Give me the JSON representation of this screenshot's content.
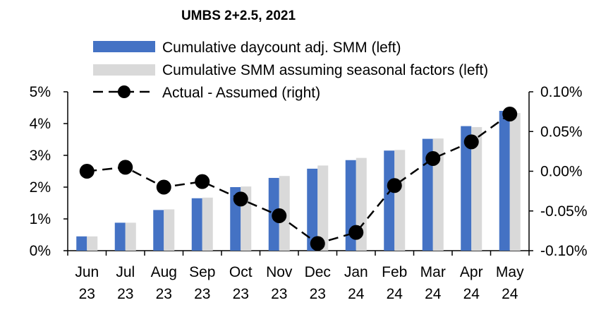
{
  "chart_data": {
    "type": "bar",
    "title": "UMBS 2+2.5, 2021",
    "categories": [
      "Jun 23",
      "Jul 23",
      "Aug 23",
      "Sep 23",
      "Oct 23",
      "Nov 23",
      "Dec 23",
      "Jan 24",
      "Feb 24",
      "Mar 24",
      "Apr 24",
      "May 24"
    ],
    "category_lines": [
      [
        "Jun",
        "23"
      ],
      [
        "Jul",
        "23"
      ],
      [
        "Aug",
        "23"
      ],
      [
        "Sep",
        "23"
      ],
      [
        "Oct",
        "23"
      ],
      [
        "Nov",
        "23"
      ],
      [
        "Dec",
        "23"
      ],
      [
        "Jan",
        "24"
      ],
      [
        "Feb",
        "24"
      ],
      [
        "Mar",
        "24"
      ],
      [
        "Apr",
        "24"
      ],
      [
        "May",
        "24"
      ]
    ],
    "series": [
      {
        "name": "Cumulative daycount adj. SMM (left)",
        "kind": "bar",
        "axis": "left",
        "color": "#4472C4",
        "values": [
          0.45,
          0.88,
          1.28,
          1.65,
          2.0,
          2.29,
          2.58,
          2.85,
          3.15,
          3.52,
          3.92,
          4.4
        ]
      },
      {
        "name": "Cumulative SMM assuming seasonal factors (left)",
        "kind": "bar",
        "axis": "left",
        "color": "#D9D9D9",
        "values": [
          0.45,
          0.88,
          1.3,
          1.67,
          2.02,
          2.35,
          2.68,
          2.92,
          3.17,
          3.53,
          3.89,
          4.33
        ]
      },
      {
        "name": "Actual - Assumed (right)",
        "kind": "line",
        "axis": "right",
        "color": "#000000",
        "values": [
          0.0,
          0.005,
          -0.02,
          -0.013,
          -0.035,
          -0.056,
          -0.091,
          -0.077,
          -0.018,
          0.016,
          0.037,
          0.072
        ]
      }
    ],
    "left_axis": {
      "min": 0,
      "max": 5,
      "step": 1,
      "labels": [
        "0%",
        "1%",
        "2%",
        "3%",
        "4%",
        "5%"
      ]
    },
    "right_axis": {
      "min": -0.1,
      "max": 0.1,
      "step": 0.05,
      "labels": [
        "-0.10%",
        "-0.05%",
        "0.00%",
        "0.05%",
        "0.10%"
      ]
    },
    "legend_position": "top",
    "grid": false
  }
}
